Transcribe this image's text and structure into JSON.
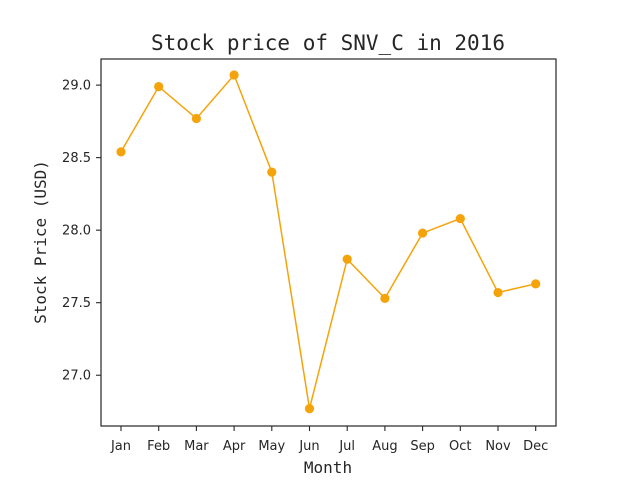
{
  "chart_data": {
    "type": "line",
    "title": "Stock price of SNV_C in 2016",
    "xlabel": "Month",
    "ylabel": "Stock Price (USD)",
    "categories": [
      "Jan",
      "Feb",
      "Mar",
      "Apr",
      "May",
      "Jun",
      "Jul",
      "Aug",
      "Sep",
      "Oct",
      "Nov",
      "Dec"
    ],
    "series": [
      {
        "values": [
          28.54,
          28.99,
          28.77,
          29.07,
          28.4,
          26.77,
          27.8,
          27.53,
          27.98,
          28.08,
          27.57,
          27.63
        ],
        "color": "#f5a30a"
      }
    ],
    "ylim": [
      26.65,
      29.18
    ],
    "yticks": [
      27.0,
      27.5,
      28.0,
      28.5,
      29.0
    ],
    "ytick_labels": [
      "27.0",
      "27.5",
      "28.0",
      "28.5",
      "29.0"
    ],
    "grid": false,
    "legend": "none"
  }
}
